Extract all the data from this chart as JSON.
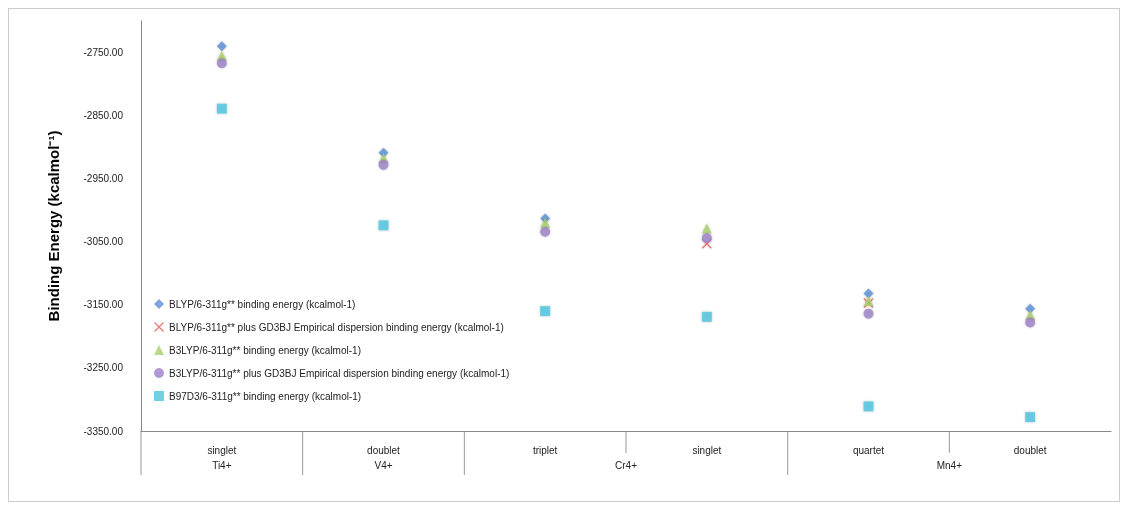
{
  "chart_data": {
    "type": "scatter",
    "ylabel": "Binding Energy (kcalmol⁻¹)",
    "categories": [
      "singlet",
      "doublet",
      "triplet",
      "singlet",
      "quartet",
      "doublet"
    ],
    "annotations": [
      "Ti4+",
      "V4+",
      "Cr4+",
      "Mn4+"
    ],
    "series": [
      {
        "name": "BLYP/6-311g** binding energy (kcalmol-1)",
        "color": "#5b8fd6",
        "marker": "diamond",
        "values": [
          -2740,
          -2909,
          -3013,
          null,
          -3132,
          -3156
        ]
      },
      {
        "name": "BLYP/6-311g** plus GD3BJ Empirical dispersion binding energy (kcalmol-1)",
        "color": "#e06060",
        "marker": "cross",
        "values": [
          null,
          null,
          null,
          -3053,
          -3147,
          null
        ]
      },
      {
        "name": "B3LYP/6-311g** binding energy (kcalmol-1)",
        "color": "#a9d06c",
        "marker": "triangle",
        "values": [
          -2755,
          -2917,
          -3020,
          -3029,
          -3144,
          -3166
        ]
      },
      {
        "name": "B3LYP/6-311g** plus GD3BJ Empirical dispersion binding energy (kcalmol-1)",
        "color": "#9d80c6",
        "marker": "circle",
        "values": [
          -2767,
          -2928,
          -3034,
          -3044,
          -3164,
          -3178
        ]
      },
      {
        "name": "B97D3/6-311g** binding energy (kcalmol-1)",
        "color": "#4cc4e0",
        "marker": "square",
        "values": [
          -2839,
          -3024,
          -3160,
          -3169,
          -3311,
          -3328
        ]
      }
    ],
    "ylim": [
      -3350,
      -2700
    ],
    "yticks": [
      {
        "value": -3350,
        "label": "-3350.00"
      },
      {
        "value": -3250,
        "label": "-3250.00"
      },
      {
        "value": -3150,
        "label": "-3150.00"
      },
      {
        "value": -3050,
        "label": "-3050.00"
      },
      {
        "value": -2950,
        "label": "-2950.00"
      },
      {
        "value": -2850,
        "label": "-2850.00"
      },
      {
        "value": -2750,
        "label": "-2750.00"
      }
    ],
    "grid": false,
    "legend": "bottom left"
  }
}
